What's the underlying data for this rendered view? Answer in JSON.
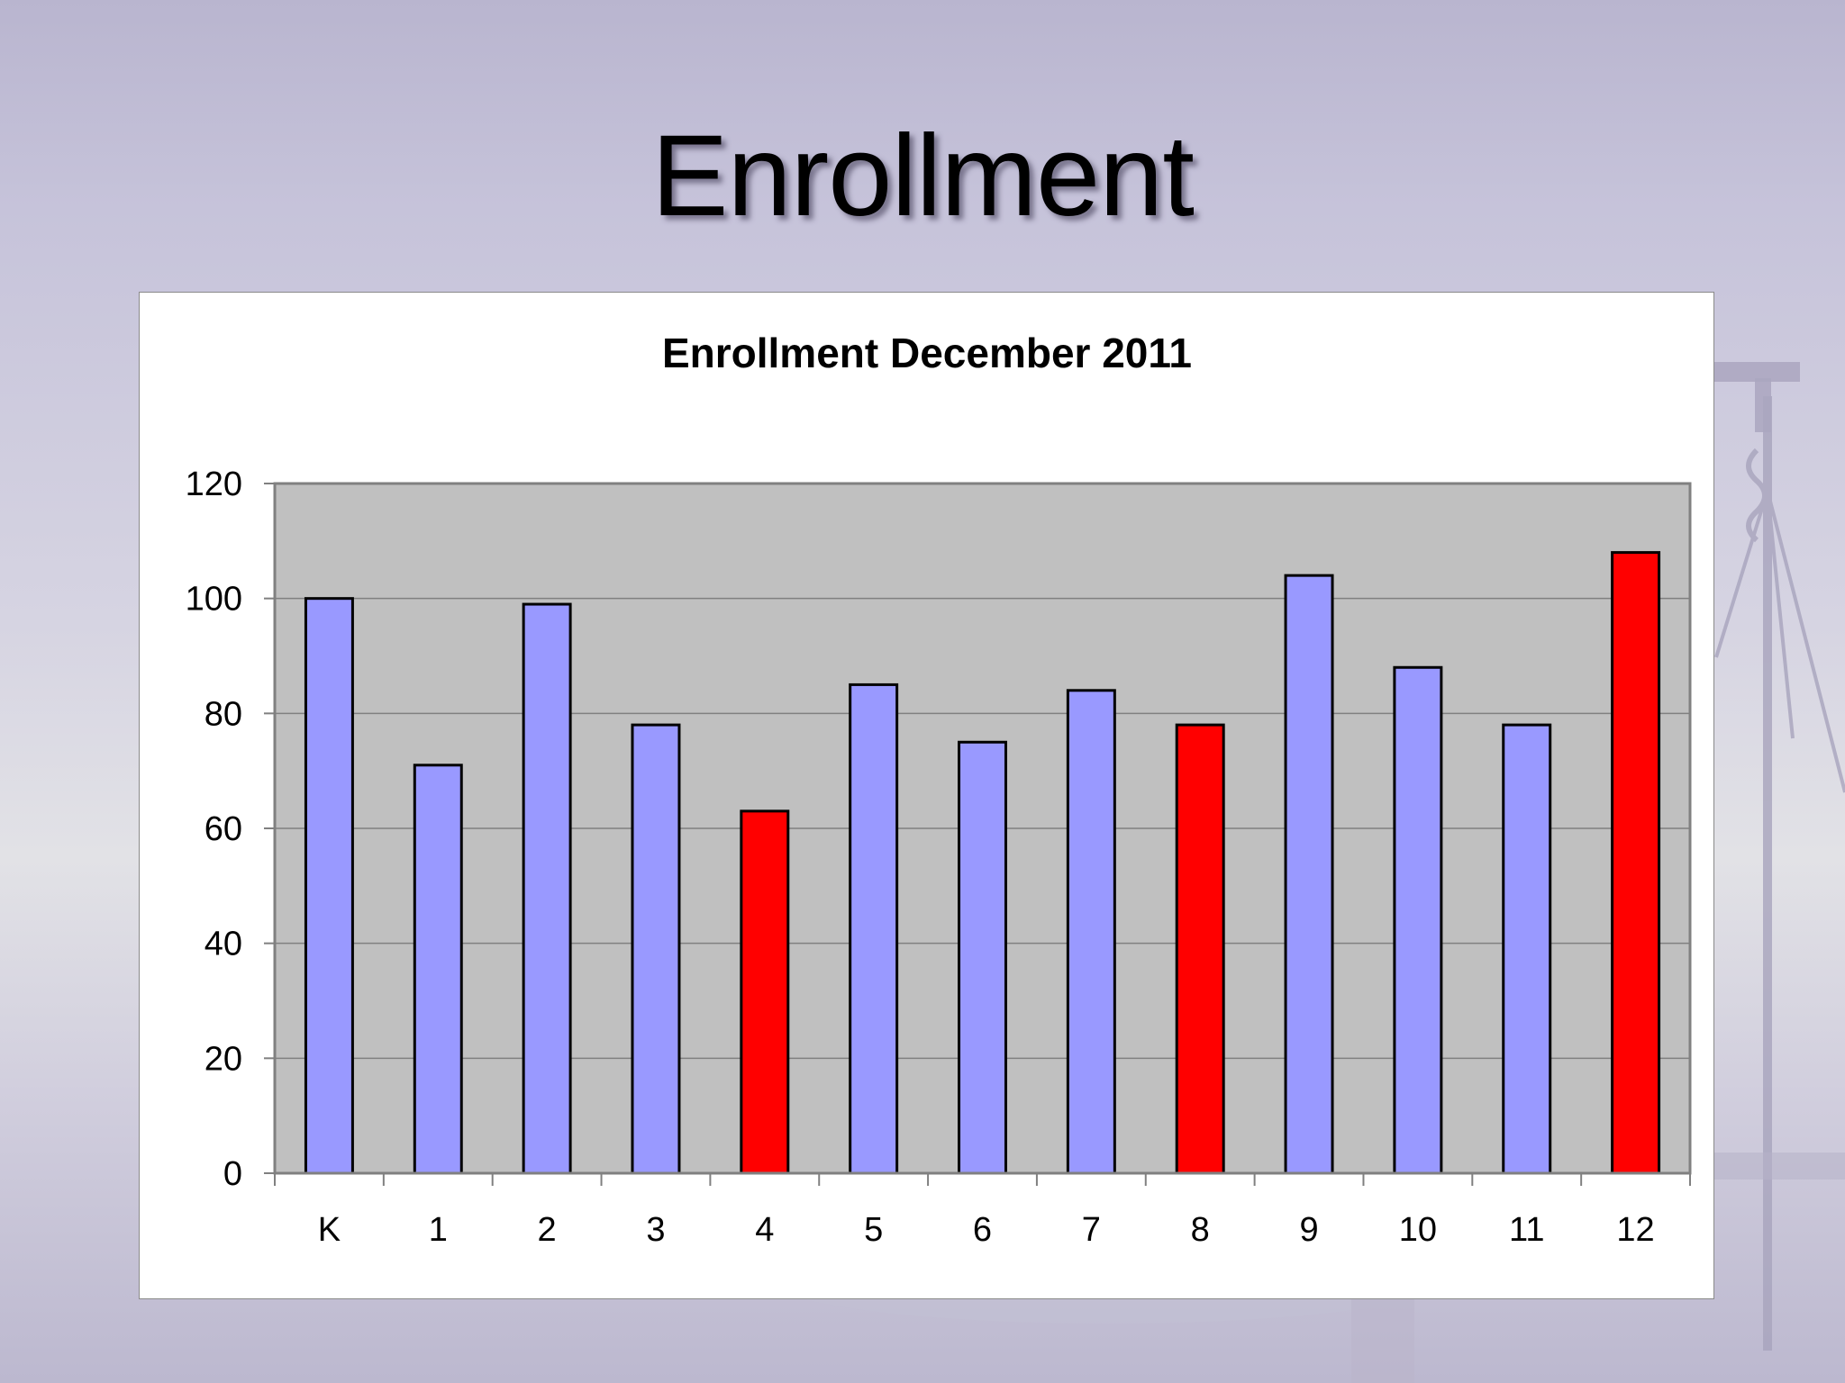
{
  "slide": {
    "title": "Enrollment"
  },
  "colors": {
    "bar_default": "#9999ff",
    "bar_highlight": "#ff0000",
    "plot_background": "#c0c0c0",
    "gridline": "#808080"
  },
  "chart_data": {
    "type": "bar",
    "title": "Enrollment December 2011",
    "xlabel": "",
    "ylabel": "",
    "categories": [
      "K",
      "1",
      "2",
      "3",
      "4",
      "5",
      "6",
      "7",
      "8",
      "9",
      "10",
      "11",
      "12"
    ],
    "values": [
      100,
      71,
      99,
      78,
      63,
      85,
      75,
      84,
      78,
      104,
      88,
      78,
      108
    ],
    "highlighted_categories": [
      "4",
      "8",
      "12"
    ],
    "ylim": [
      0,
      120
    ],
    "yticks": [
      0,
      20,
      40,
      60,
      80,
      100,
      120
    ],
    "grid": true,
    "legend": "none"
  }
}
